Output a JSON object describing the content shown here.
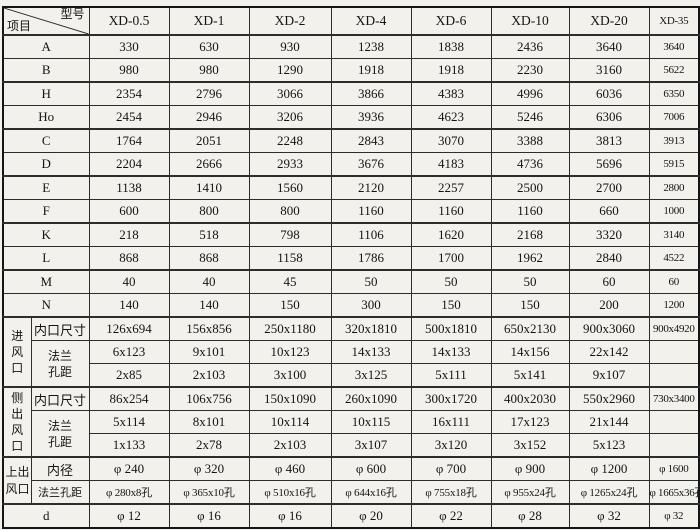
{
  "table": {
    "corner": {
      "top_right": "型号",
      "bottom_left": "项目"
    },
    "columns": [
      "XD-0.5",
      "XD-1",
      "XD-2",
      "XD-4",
      "XD-6",
      "XD-10",
      "XD-20",
      "XD-35"
    ],
    "dim_rows": [
      {
        "label": "A",
        "values": [
          "330",
          "630",
          "930",
          "1238",
          "1838",
          "2436",
          "3640",
          "3640"
        ]
      },
      {
        "label": "B",
        "values": [
          "980",
          "980",
          "1290",
          "1918",
          "1918",
          "2230",
          "3160",
          "5622"
        ]
      },
      {
        "label": "H",
        "values": [
          "2354",
          "2796",
          "3066",
          "3866",
          "4383",
          "4996",
          "6036",
          "6350"
        ]
      },
      {
        "label": "Ho",
        "values": [
          "2454",
          "2946",
          "3206",
          "3936",
          "4623",
          "5246",
          "6306",
          "7006"
        ]
      },
      {
        "label": "C",
        "values": [
          "1764",
          "2051",
          "2248",
          "2843",
          "3070",
          "3388",
          "3813",
          "3913"
        ]
      },
      {
        "label": "D",
        "values": [
          "2204",
          "2666",
          "2933",
          "3676",
          "4183",
          "4736",
          "5696",
          "5915"
        ]
      },
      {
        "label": "E",
        "values": [
          "1138",
          "1410",
          "1560",
          "2120",
          "2257",
          "2500",
          "2700",
          "2800"
        ]
      },
      {
        "label": "F",
        "values": [
          "600",
          "800",
          "800",
          "1160",
          "1160",
          "1160",
          "660",
          "1000"
        ]
      },
      {
        "label": "K",
        "values": [
          "218",
          "518",
          "798",
          "1106",
          "1620",
          "2168",
          "3320",
          "3140"
        ]
      },
      {
        "label": "L",
        "values": [
          "868",
          "868",
          "1158",
          "1786",
          "1700",
          "1962",
          "2840",
          "4522"
        ]
      },
      {
        "label": "M",
        "values": [
          "40",
          "40",
          "45",
          "50",
          "50",
          "50",
          "60",
          "60"
        ]
      },
      {
        "label": "N",
        "values": [
          "140",
          "140",
          "150",
          "300",
          "150",
          "150",
          "200",
          "1200"
        ]
      }
    ],
    "sections": [
      {
        "group": "进风口",
        "sub1": "内口尺寸",
        "sub2": "法兰孔距",
        "rows": [
          [
            "126x694",
            "156x856",
            "250x1180",
            "320x1810",
            "500x1810",
            "650x2130",
            "900x3060",
            "900x4920"
          ],
          [
            "6x123",
            "9x101",
            "10x123",
            "14x133",
            "14x133",
            "14x156",
            "22x142",
            ""
          ],
          [
            "2x85",
            "2x103",
            "3x100",
            "3x125",
            "5x111",
            "5x141",
            "9x107",
            ""
          ]
        ]
      },
      {
        "group": "侧出风口",
        "sub1": "内口尺寸",
        "sub2": "法兰孔距",
        "rows": [
          [
            "86x254",
            "106x756",
            "150x1090",
            "260x1090",
            "300x1720",
            "400x2030",
            "550x2960",
            "730x3400"
          ],
          [
            "5x114",
            "8x101",
            "10x114",
            "10x115",
            "16x111",
            "17x123",
            "21x144",
            ""
          ],
          [
            "1x133",
            "2x78",
            "2x103",
            "3x107",
            "3x120",
            "3x152",
            "5x123",
            ""
          ]
        ]
      },
      {
        "group": "上出风口",
        "sub1": "内径",
        "sub2": "法兰孔距",
        "rows": [
          [
            "φ 240",
            "φ 320",
            "φ 460",
            "φ 600",
            "φ 700",
            "φ 900",
            "φ 1200",
            "φ 1600"
          ],
          [
            "φ 280x8孔",
            "φ 365x10孔",
            "φ 510x16孔",
            "φ 644x16孔",
            "φ 755x18孔",
            "φ 955x24孔",
            "φ 1265x24孔",
            "φ 1665x36孔"
          ]
        ]
      }
    ],
    "d_row": {
      "label": "d",
      "values": [
        "φ 12",
        "φ 16",
        "φ 16",
        "φ 20",
        "φ 22",
        "φ 28",
        "φ 32",
        "φ 32"
      ]
    }
  }
}
